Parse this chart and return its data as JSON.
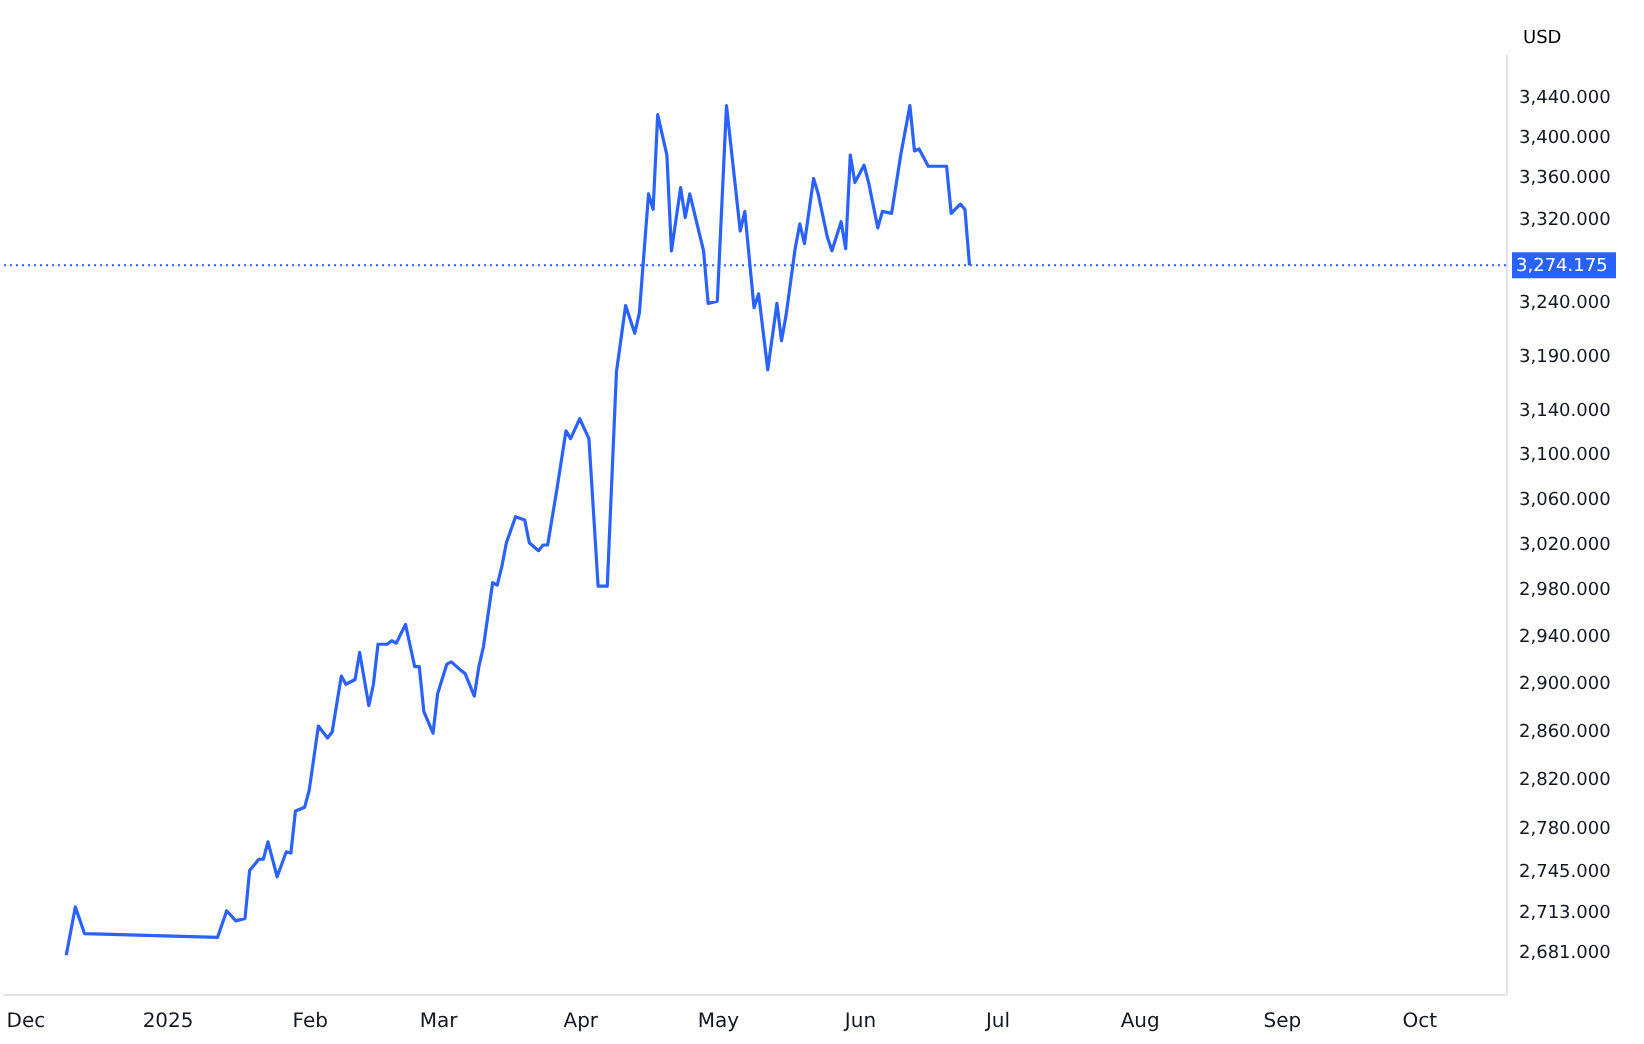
{
  "chart_data": {
    "type": "line",
    "ylabel": "USD",
    "log": true,
    "grid": false,
    "marker": "none",
    "line_style": "solid",
    "x": [
      "2024-12-10",
      "2024-12-12",
      "2024-12-14",
      "2025-01-12",
      "2025-01-14",
      "2025-01-16",
      "2025-01-18",
      "2025-01-19",
      "2025-01-21",
      "2025-01-22",
      "2025-01-23",
      "2025-01-25",
      "2025-01-27",
      "2025-01-28",
      "2025-01-29",
      "2025-01-31",
      "2025-02-01",
      "2025-02-03",
      "2025-02-05",
      "2025-02-06",
      "2025-02-08",
      "2025-02-09",
      "2025-02-11",
      "2025-02-12",
      "2025-02-14",
      "2025-02-15",
      "2025-02-16",
      "2025-02-18",
      "2025-02-19",
      "2025-02-20",
      "2025-02-22",
      "2025-02-24",
      "2025-02-25",
      "2025-02-26",
      "2025-02-28",
      "2025-03-01",
      "2025-03-03",
      "2025-03-04",
      "2025-03-06",
      "2025-03-07",
      "2025-03-09",
      "2025-03-10",
      "2025-03-11",
      "2025-03-13",
      "2025-03-14",
      "2025-03-15",
      "2025-03-16",
      "2025-03-18",
      "2025-03-20",
      "2025-03-21",
      "2025-03-23",
      "2025-03-24",
      "2025-03-25",
      "2025-03-27",
      "2025-03-29",
      "2025-03-30",
      "2025-04-01",
      "2025-04-03",
      "2025-04-05",
      "2025-04-07",
      "2025-04-09",
      "2025-04-11",
      "2025-04-13",
      "2025-04-14",
      "2025-04-16",
      "2025-04-17",
      "2025-04-18",
      "2025-04-20",
      "2025-04-21",
      "2025-04-23",
      "2025-04-24",
      "2025-04-25",
      "2025-04-28",
      "2025-04-29",
      "2025-05-01",
      "2025-05-03",
      "2025-05-06",
      "2025-05-07",
      "2025-05-09",
      "2025-05-10",
      "2025-05-12",
      "2025-05-14",
      "2025-05-15",
      "2025-05-16",
      "2025-05-18",
      "2025-05-19",
      "2025-05-20",
      "2025-05-22",
      "2025-05-23",
      "2025-05-25",
      "2025-05-26",
      "2025-05-28",
      "2025-05-29",
      "2025-05-30",
      "2025-05-31",
      "2025-06-02",
      "2025-06-03",
      "2025-06-05",
      "2025-06-06",
      "2025-06-08",
      "2025-06-10",
      "2025-06-12",
      "2025-06-13",
      "2025-06-14",
      "2025-06-16",
      "2025-06-20",
      "2025-06-21",
      "2025-06-23",
      "2025-06-24",
      "2025-06-25"
    ],
    "series": [
      {
        "color": "#2962ff",
        "values": [
          2678,
          2716,
          2695,
          2692,
          2713,
          2705,
          2707,
          2745,
          2754,
          2754,
          2768,
          2740,
          2760,
          2759,
          2793,
          2796,
          2810,
          2863,
          2853,
          2858,
          2905,
          2898,
          2902,
          2925,
          2880,
          2898,
          2932,
          2932,
          2935,
          2933,
          2949,
          2913,
          2913,
          2875,
          2857,
          2890,
          2915,
          2917,
          2910,
          2907,
          2888,
          2913,
          2930,
          2985,
          2983,
          2999,
          3020,
          3043,
          3040,
          3020,
          3013,
          3018,
          3018,
          3067,
          3120,
          3113,
          3131,
          3113,
          2982,
          2982,
          3174,
          3236,
          3210,
          3229,
          3343,
          3328,
          3421,
          3381,
          3288,
          3349,
          3320,
          3343,
          3288,
          3238,
          3240,
          3430,
          3307,
          3326,
          3234,
          3247,
          3176,
          3238,
          3203,
          3227,
          3291,
          3314,
          3295,
          3358,
          3343,
          3301,
          3288,
          3316,
          3290,
          3381,
          3354,
          3371,
          3354,
          3310,
          3326,
          3324,
          3381,
          3430,
          3385,
          3387,
          3370,
          3370,
          3324,
          3333,
          3328,
          3274.175
        ]
      }
    ],
    "xlim": [
      "2024-11-26",
      "2025-10-20"
    ],
    "xticks": [
      {
        "value": "2024-12-01",
        "label": "Dec"
      },
      {
        "value": "2025-01-01",
        "label": "2025"
      },
      {
        "value": "2025-02-01",
        "label": "Feb"
      },
      {
        "value": "2025-03-01",
        "label": "Mar"
      },
      {
        "value": "2025-04-01",
        "label": "Apr"
      },
      {
        "value": "2025-05-01",
        "label": "May"
      },
      {
        "value": "2025-06-01",
        "label": "Jun"
      },
      {
        "value": "2025-07-01",
        "label": "Jul"
      },
      {
        "value": "2025-08-01",
        "label": "Aug"
      },
      {
        "value": "2025-09-01",
        "label": "Sep"
      },
      {
        "value": "2025-10-01",
        "label": "Oct"
      }
    ],
    "ylim": [
      2648,
      3482
    ],
    "yticks": [
      {
        "value": 2681,
        "label": "2,681.000"
      },
      {
        "value": 2713,
        "label": "2,713.000"
      },
      {
        "value": 2745,
        "label": "2,745.000"
      },
      {
        "value": 2780,
        "label": "2,780.000"
      },
      {
        "value": 2820,
        "label": "2,820.000"
      },
      {
        "value": 2860,
        "label": "2,860.000"
      },
      {
        "value": 2900,
        "label": "2,900.000"
      },
      {
        "value": 2940,
        "label": "2,940.000"
      },
      {
        "value": 2980,
        "label": "2,980.000"
      },
      {
        "value": 3020,
        "label": "3,020.000"
      },
      {
        "value": 3060,
        "label": "3,060.000"
      },
      {
        "value": 3100,
        "label": "3,100.000"
      },
      {
        "value": 3140,
        "label": "3,140.000"
      },
      {
        "value": 3190,
        "label": "3,190.000"
      },
      {
        "value": 3240,
        "label": "3,240.000"
      },
      {
        "value": 3320,
        "label": "3,320.000"
      },
      {
        "value": 3360,
        "label": "3,360.000"
      },
      {
        "value": 3400,
        "label": "3,400.000"
      },
      {
        "value": 3440,
        "label": "3,440.000"
      }
    ],
    "ref_lines": [
      {
        "axis": "y",
        "value": 3274.175,
        "label": "3,274.175",
        "color": "#2962ff",
        "line_style": "dotted"
      }
    ]
  }
}
